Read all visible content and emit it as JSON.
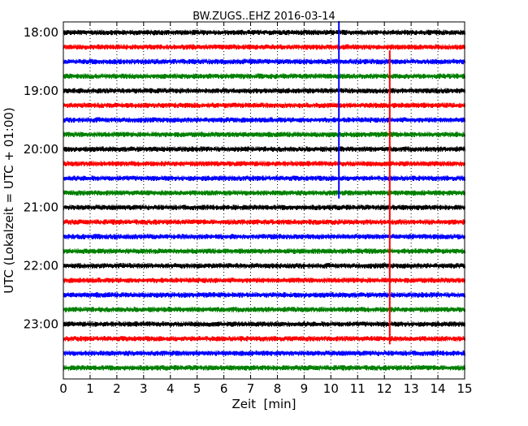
{
  "chart_data": {
    "type": "line",
    "title": "BW.ZUGS..EHZ 2016-03-14",
    "xlabel": "Zeit  [min]",
    "ylabel": "UTC (Lokalzeit = UTC + 01:00)",
    "xlim": [
      0,
      15
    ],
    "x_ticks": [
      0,
      1,
      2,
      3,
      4,
      5,
      6,
      7,
      8,
      9,
      10,
      11,
      12,
      13,
      14,
      15
    ],
    "x_tick_labels": [
      "0",
      "1",
      "2",
      "3",
      "4",
      "5",
      "6",
      "7",
      "8",
      "9",
      "10",
      "11",
      "12",
      "13",
      "14",
      "15"
    ],
    "y_tick_labels": [
      "18:00",
      "19:00",
      "20:00",
      "21:00",
      "22:00",
      "23:00"
    ],
    "grid": "vertical-dotted",
    "trace_colors": [
      "#000000",
      "#ff0000",
      "#0000ff",
      "#008000"
    ],
    "traces": [
      {
        "start": "18:00",
        "color": "#000000"
      },
      {
        "start": "18:15",
        "color": "#ff0000"
      },
      {
        "start": "18:30",
        "color": "#0000ff"
      },
      {
        "start": "18:45",
        "color": "#008000"
      },
      {
        "start": "19:00",
        "color": "#000000"
      },
      {
        "start": "19:15",
        "color": "#ff0000"
      },
      {
        "start": "19:30",
        "color": "#0000ff"
      },
      {
        "start": "19:45",
        "color": "#008000"
      },
      {
        "start": "20:00",
        "color": "#000000"
      },
      {
        "start": "20:15",
        "color": "#ff0000"
      },
      {
        "start": "20:30",
        "color": "#0000ff"
      },
      {
        "start": "20:45",
        "color": "#008000"
      },
      {
        "start": "21:00",
        "color": "#000000"
      },
      {
        "start": "21:15",
        "color": "#ff0000"
      },
      {
        "start": "21:30",
        "color": "#0000ff"
      },
      {
        "start": "21:45",
        "color": "#008000"
      },
      {
        "start": "22:00",
        "color": "#000000"
      },
      {
        "start": "22:15",
        "color": "#ff0000"
      },
      {
        "start": "22:30",
        "color": "#0000ff"
      },
      {
        "start": "22:45",
        "color": "#008000"
      },
      {
        "start": "23:00",
        "color": "#000000"
      },
      {
        "start": "23:15",
        "color": "#ff0000"
      },
      {
        "start": "23:30",
        "color": "#0000ff"
      },
      {
        "start": "23:45",
        "color": "#008000"
      }
    ],
    "events": [
      {
        "color": "#0000ff",
        "x": 10.3,
        "from_trace": 0,
        "to_trace": 11
      },
      {
        "color": "#ff0000",
        "x": 12.2,
        "from_trace": 2,
        "to_trace": 21
      }
    ]
  }
}
